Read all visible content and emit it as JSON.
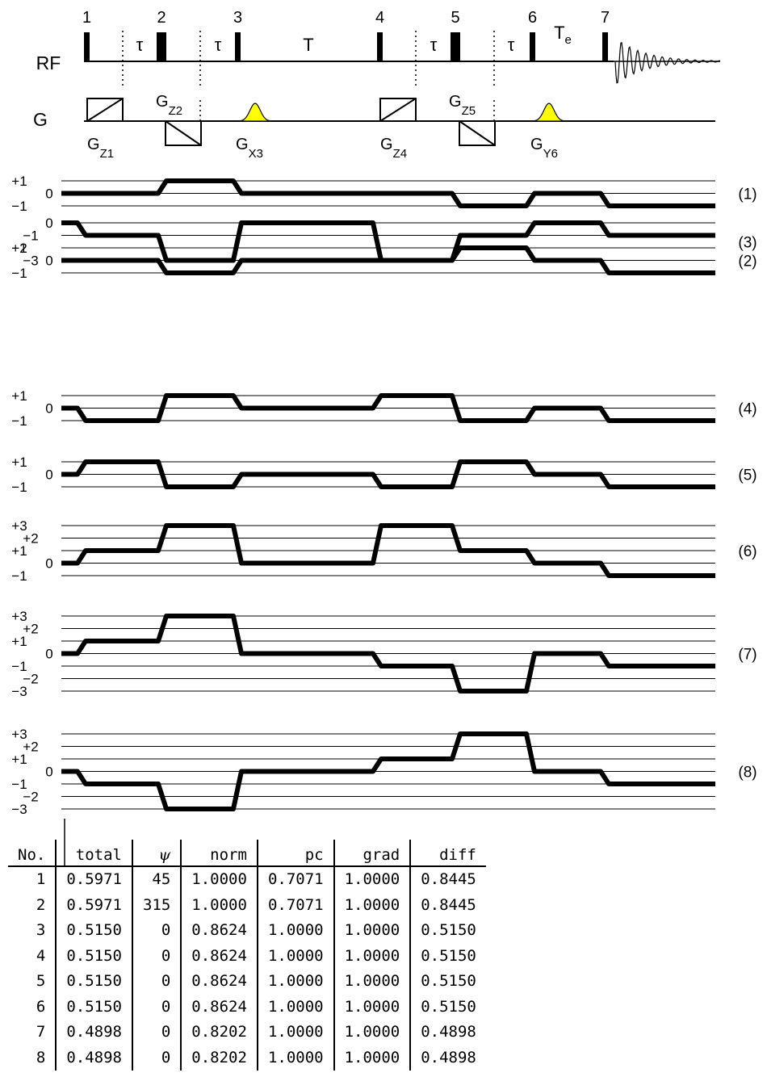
{
  "sequence": {
    "rf_label": "RF",
    "g_label": "G",
    "pulse_numbers": [
      "1",
      "2",
      "3",
      "4",
      "5",
      "6",
      "7"
    ],
    "delay_labels": [
      "τ",
      "τ",
      "T",
      "τ",
      "τ",
      "T"
    ],
    "delay_subscript": "e",
    "gradients": [
      {
        "main": "G",
        "sub": "Z1"
      },
      {
        "main": "G",
        "sub": "Z2"
      },
      {
        "main": "G",
        "sub": "X3"
      },
      {
        "main": "G",
        "sub": "Z4"
      },
      {
        "main": "G",
        "sub": "Z5"
      },
      {
        "main": "G",
        "sub": "Y6"
      }
    ],
    "shaped_pulse_color": "#ffff00"
  },
  "pathways": [
    {
      "label": "(1)",
      "ticks": [
        "+1",
        "0",
        "−1"
      ],
      "levels": [
        0,
        0,
        1,
        0,
        0,
        -1,
        0,
        -1
      ]
    },
    {
      "label": "(2)",
      "ticks": [
        "+1",
        "0",
        "−1"
      ],
      "levels": [
        0,
        0,
        -1,
        0,
        0,
        1,
        0,
        -1
      ]
    },
    {
      "label": "(3)",
      "ticks": [
        "0",
        "−1",
        "−2",
        "−3"
      ],
      "levels": [
        0,
        -1,
        -3,
        0,
        -3,
        -1,
        0,
        -1
      ]
    },
    {
      "label": "(4)",
      "ticks": [
        "+1",
        "0",
        "−1"
      ],
      "levels": [
        0,
        -1,
        1,
        0,
        1,
        -1,
        0,
        -1
      ]
    },
    {
      "label": "(5)",
      "ticks": [
        "+1",
        "0",
        "−1"
      ],
      "levels": [
        0,
        1,
        -1,
        0,
        -1,
        1,
        0,
        -1
      ]
    },
    {
      "label": "(6)",
      "ticks": [
        "+3",
        "+2",
        "+1",
        "0",
        "−1"
      ],
      "levels": [
        0,
        1,
        3,
        0,
        3,
        1,
        0,
        -1
      ]
    },
    {
      "label": "(7)",
      "ticks": [
        "+3",
        "+2",
        "+1",
        "0",
        "−1",
        "−2",
        "−3"
      ],
      "levels": [
        0,
        1,
        3,
        0,
        -1,
        -3,
        0,
        -1
      ]
    },
    {
      "label": "(8)",
      "ticks": [
        "+3",
        "+2",
        "+1",
        "0",
        "−1",
        "−2",
        "−3"
      ],
      "levels": [
        0,
        -1,
        -3,
        0,
        1,
        3,
        0,
        -1
      ]
    }
  ],
  "table": {
    "headers": [
      "No.",
      "total",
      "ψ",
      "norm",
      "pc",
      "grad",
      "diff"
    ],
    "rows": [
      [
        "1",
        "0.5971",
        "45",
        "1.0000",
        "0.7071",
        "1.0000",
        "0.8445"
      ],
      [
        "2",
        "0.5971",
        "315",
        "1.0000",
        "0.7071",
        "1.0000",
        "0.8445"
      ],
      [
        "3",
        "0.5150",
        "0",
        "0.8624",
        "1.0000",
        "1.0000",
        "0.5150"
      ],
      [
        "4",
        "0.5150",
        "0",
        "0.8624",
        "1.0000",
        "1.0000",
        "0.5150"
      ],
      [
        "5",
        "0.5150",
        "0",
        "0.8624",
        "1.0000",
        "1.0000",
        "0.5150"
      ],
      [
        "6",
        "0.5150",
        "0",
        "0.8624",
        "1.0000",
        "1.0000",
        "0.5150"
      ],
      [
        "7",
        "0.4898",
        "0",
        "0.8202",
        "1.0000",
        "1.0000",
        "0.4898"
      ],
      [
        "8",
        "0.4898",
        "0",
        "0.8202",
        "1.0000",
        "1.0000",
        "0.4898"
      ]
    ]
  }
}
